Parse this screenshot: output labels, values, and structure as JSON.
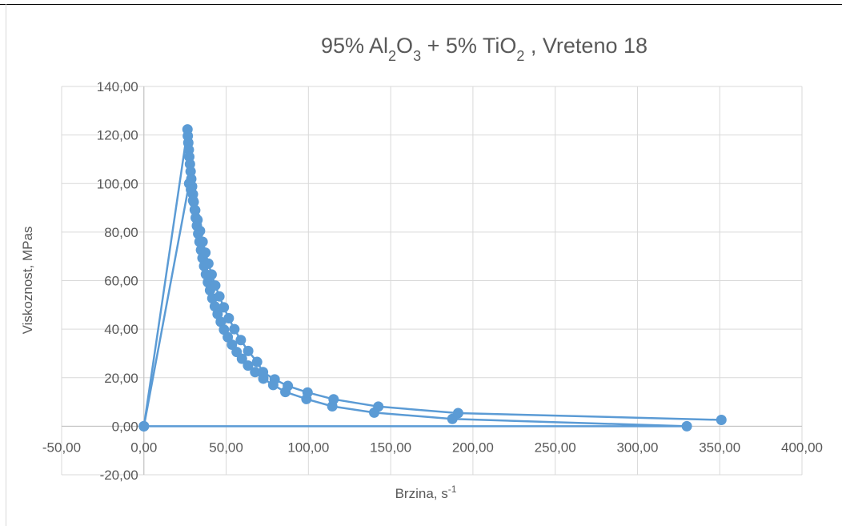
{
  "chart_data": {
    "type": "scatter",
    "title": {
      "prefix": "95% Al",
      "sub1": "2",
      "mid1": "O",
      "sub2": "3",
      "mid2": " + 5% TiO",
      "sub3": "2",
      "suffix": " , Vreteno 18"
    },
    "xlabel": {
      "text": "Brzina, s",
      "sup": "-1"
    },
    "ylabel": "Viskoznost, MPas",
    "xlim": [
      -50,
      400
    ],
    "ylim": [
      -20,
      140
    ],
    "xticks": [
      -50,
      0,
      50,
      100,
      150,
      200,
      250,
      300,
      350,
      400
    ],
    "xtick_labels": [
      "-50,00",
      "0,00",
      "50,00",
      "100,00",
      "150,00",
      "200,00",
      "250,00",
      "300,00",
      "350,00",
      "400,00"
    ],
    "yticks": [
      -20,
      0,
      20,
      40,
      60,
      80,
      100,
      120,
      140
    ],
    "ytick_labels": [
      "-20,00",
      "0,00",
      "20,00",
      "40,00",
      "60,00",
      "80,00",
      "100,00",
      "120,00",
      "140,00"
    ],
    "grid": true,
    "legend": "none",
    "color": "#5b9bd5",
    "series": [
      {
        "x": [
          0,
          26.5,
          26.7,
          27.0,
          27.3,
          27.6,
          28.0,
          28.4,
          28.8,
          29.3,
          29.8,
          30.3,
          30.9,
          31.5,
          32.2,
          33.0,
          33.8,
          34.7,
          35.6,
          36.6,
          37.7,
          38.9,
          40.2,
          41.6,
          43.1,
          44.8,
          46.7,
          48.7,
          51.0,
          53.5,
          56.4,
          59.6,
          63.3,
          67.6,
          72.6,
          78.6,
          86.0,
          98.8,
          114.5,
          140.0,
          187.5,
          330.0,
          0
        ],
        "y": [
          0,
          122.3,
          119.6,
          116.8,
          113.9,
          111.0,
          108.0,
          105.0,
          101.9,
          98.8,
          95.6,
          92.4,
          89.2,
          85.9,
          82.6,
          79.3,
          76.0,
          72.6,
          69.3,
          66.0,
          62.6,
          59.3,
          56.0,
          52.7,
          49.4,
          46.2,
          43.0,
          39.8,
          36.7,
          33.6,
          30.6,
          27.8,
          25.0,
          22.3,
          19.6,
          17.0,
          14.1,
          11.2,
          8.2,
          5.6,
          3.0,
          0,
          0
        ]
      },
      {
        "x": [
          0,
          27.5,
          28.6,
          29.9,
          31.2,
          32.6,
          34.1,
          35.7,
          37.4,
          39.2,
          41.2,
          43.4,
          45.9,
          48.6,
          51.6,
          55.0,
          58.9,
          63.4,
          68.8,
          72.4,
          79.5,
          87.5,
          99.5,
          115.3,
          142.5,
          191.0,
          351.0
        ],
        "y": [
          0,
          100.0,
          97.5,
          93.0,
          89.0,
          85.0,
          80.5,
          76.0,
          71.5,
          67.0,
          62.5,
          58.0,
          53.5,
          49.0,
          44.5,
          40.0,
          35.5,
          31.0,
          26.5,
          22.3,
          19.3,
          16.6,
          13.9,
          11.1,
          8.1,
          5.4,
          2.6
        ]
      }
    ]
  }
}
